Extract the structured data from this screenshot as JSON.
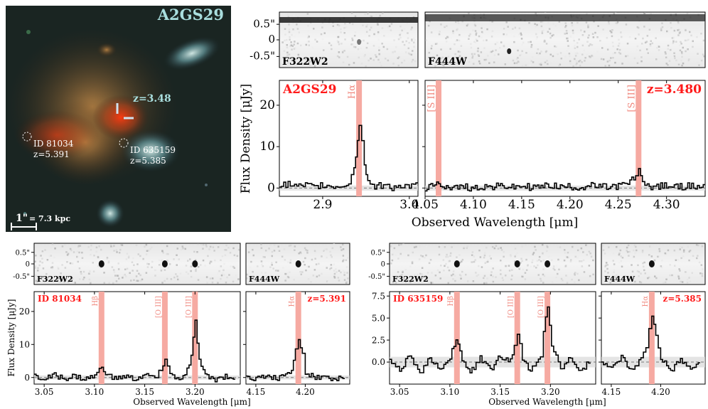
{
  "image": {
    "title": "A2GS29",
    "redshift": "z=3.48",
    "scale_bar": "1\"",
    "scale_text": "= 7.3 kpc",
    "sources": [
      {
        "id": "ID 81034",
        "z": "z=5.391"
      },
      {
        "id": "ID 635159",
        "z": "z=5.385"
      }
    ]
  },
  "colors": {
    "line_band": "#f6aaa2",
    "spectrum": "#000000",
    "label_red": "#ff1a1a",
    "label_line": "#f08a80",
    "noise_band": "#d8d8d8"
  },
  "chart_data": [
    {
      "name": "A2GS29",
      "type": "line",
      "ylabel": "Flux Density [μJy]",
      "xlabel": "Observed Wavelength [μm]",
      "spatial_ticks": [
        "0.5\"",
        "0",
        "-0.5\""
      ],
      "panels": [
        {
          "filter": "F322W2",
          "xlim": [
            2.85,
            3.01
          ],
          "xticks": [
            2.9,
            3.0
          ],
          "xtick_labels": [
            "2.9",
            "3.0"
          ],
          "lines": [
            {
              "label": "Hα",
              "x": 2.942
            }
          ],
          "x": [
            2.85,
            2.86,
            2.87,
            2.88,
            2.89,
            2.9,
            2.91,
            2.92,
            2.93,
            2.936,
            2.94,
            2.942,
            2.945,
            2.948,
            2.952,
            2.96,
            2.97,
            2.98,
            2.99,
            3.0,
            3.01
          ],
          "y": [
            0.4,
            1.0,
            0.2,
            0.6,
            0.1,
            0.8,
            0.3,
            0.5,
            1.2,
            5.0,
            11.0,
            15.5,
            12.0,
            6.0,
            1.5,
            0.3,
            0.8,
            0.2,
            0.6,
            0.3,
            0.5
          ]
        },
        {
          "filter": "F444W",
          "xlim": [
            4.05,
            4.34
          ],
          "xticks": [
            4.05,
            4.1,
            4.15,
            4.2,
            4.25,
            4.3
          ],
          "xtick_labels": [
            "4.05",
            "4.10",
            "4.15",
            "4.20",
            "4.25",
            "4.30"
          ],
          "lines": [
            {
              "label": "[S III]",
              "x": 4.064
            },
            {
              "label": "[S III]",
              "x": 4.271
            }
          ],
          "x": [
            4.05,
            4.06,
            4.064,
            4.07,
            4.08,
            4.09,
            4.1,
            4.11,
            4.12,
            4.13,
            4.14,
            4.15,
            4.16,
            4.17,
            4.18,
            4.19,
            4.2,
            4.21,
            4.22,
            4.23,
            4.24,
            4.25,
            4.26,
            4.268,
            4.271,
            4.275,
            4.28,
            4.29,
            4.3,
            4.31,
            4.32,
            4.33,
            4.34
          ],
          "y": [
            0.0,
            0.4,
            1.2,
            0.5,
            0.1,
            0.3,
            0.0,
            0.4,
            0.2,
            0.6,
            0.1,
            0.5,
            0.2,
            0.3,
            0.7,
            0.2,
            0.4,
            0.1,
            0.6,
            0.3,
            0.2,
            0.5,
            1.0,
            3.0,
            4.0,
            2.0,
            0.5,
            0.3,
            0.6,
            0.2,
            0.5,
            0.3,
            0.4
          ]
        }
      ],
      "ylim": [
        -2,
        26
      ],
      "yticks": [
        0,
        10,
        20
      ],
      "redshift_label": "z=3.480"
    },
    {
      "name": "ID 81034",
      "type": "line",
      "ylabel": "Flux Density [μJy]",
      "xlabel": "Observed Wavelength [μm]",
      "spatial_ticks": [
        "0.5\"",
        "0",
        "-0.5\""
      ],
      "panels": [
        {
          "filter": "F322W2",
          "xlim": [
            3.04,
            3.245
          ],
          "xticks": [
            3.05,
            3.1,
            3.15,
            3.2
          ],
          "xtick_labels": [
            "3.05",
            "3.10",
            "3.15",
            "3.20"
          ],
          "lines": [
            {
              "label": "Hβ",
              "x": 3.107
            },
            {
              "label": "[O III]",
              "x": 3.17
            },
            {
              "label": "[O III]",
              "x": 3.2
            }
          ],
          "x": [
            3.04,
            3.05,
            3.06,
            3.07,
            3.08,
            3.09,
            3.1,
            3.107,
            3.115,
            3.12,
            3.13,
            3.14,
            3.15,
            3.16,
            3.166,
            3.17,
            3.175,
            3.18,
            3.19,
            3.196,
            3.2,
            3.204,
            3.21,
            3.22,
            3.23,
            3.24
          ],
          "y": [
            0.2,
            -0.5,
            0.6,
            -0.3,
            0.4,
            -0.6,
            0.5,
            3.0,
            0.2,
            -0.4,
            0.3,
            -0.5,
            0.6,
            0.1,
            2.0,
            6.0,
            1.0,
            -0.5,
            0.4,
            6.0,
            17.0,
            5.0,
            0.3,
            -0.6,
            0.4,
            -0.2
          ]
        },
        {
          "filter": "F444W",
          "xlim": [
            4.14,
            4.245
          ],
          "xticks": [
            4.15,
            4.2
          ],
          "xtick_labels": [
            "4.15",
            "4.20"
          ],
          "lines": [
            {
              "label": "Hα",
              "x": 4.193
            }
          ],
          "x": [
            4.14,
            4.15,
            4.16,
            4.17,
            4.18,
            4.186,
            4.19,
            4.193,
            4.197,
            4.2,
            4.21,
            4.22,
            4.23,
            4.24
          ],
          "y": [
            0.2,
            -0.4,
            0.5,
            -0.3,
            0.3,
            2.0,
            8.5,
            12.0,
            7.0,
            1.5,
            -0.3,
            0.4,
            -0.5,
            0.2
          ]
        }
      ],
      "ylim": [
        -2,
        26
      ],
      "yticks": [
        0,
        10,
        20
      ],
      "redshift_label": "z=5.391"
    },
    {
      "name": "ID 635159",
      "type": "line",
      "ylabel": "",
      "xlabel": "Observed Wavelength [μm]",
      "spatial_ticks": [
        "0.5\"",
        "0",
        "-0.5\""
      ],
      "panels": [
        {
          "filter": "F322W2",
          "xlim": [
            3.04,
            3.245
          ],
          "xticks": [
            3.05,
            3.1,
            3.15,
            3.2
          ],
          "xtick_labels": [
            "3.05",
            "3.10",
            "3.15",
            "3.20"
          ],
          "lines": [
            {
              "label": "Hβ",
              "x": 3.107
            },
            {
              "label": "[O III]",
              "x": 3.167
            },
            {
              "label": "[O III]",
              "x": 3.197
            }
          ],
          "x": [
            3.04,
            3.05,
            3.06,
            3.07,
            3.08,
            3.09,
            3.1,
            3.106,
            3.112,
            3.12,
            3.13,
            3.14,
            3.15,
            3.16,
            3.164,
            3.167,
            3.172,
            3.18,
            3.19,
            3.193,
            3.197,
            3.201,
            3.21,
            3.22,
            3.23,
            3.24
          ],
          "y": [
            0.3,
            -1.0,
            0.8,
            -1.5,
            0.5,
            -0.8,
            0.6,
            2.5,
            0.3,
            -1.2,
            0.4,
            -0.9,
            0.7,
            0.2,
            2.0,
            3.2,
            0.4,
            -1.0,
            0.5,
            3.5,
            6.5,
            2.0,
            -0.8,
            0.6,
            -1.1,
            0.3
          ]
        },
        {
          "filter": "F444W",
          "xlim": [
            4.14,
            4.245
          ],
          "xticks": [
            4.15,
            4.2
          ],
          "xtick_labels": [
            "4.15",
            "4.20"
          ],
          "lines": [
            {
              "label": "Hα",
              "x": 4.191
            }
          ],
          "x": [
            4.14,
            4.15,
            4.16,
            4.17,
            4.18,
            4.185,
            4.188,
            4.191,
            4.195,
            4.2,
            4.21,
            4.22,
            4.23,
            4.24
          ],
          "y": [
            0.2,
            -0.8,
            0.6,
            -1.0,
            0.4,
            1.5,
            4.0,
            5.3,
            3.0,
            0.5,
            -1.0,
            0.3,
            -0.9,
            0.2
          ]
        }
      ],
      "ylim": [
        -2.5,
        8
      ],
      "yticks": [
        0.0,
        2.5,
        5.0,
        7.5
      ],
      "ytick_labels": [
        "0.0",
        "2.5",
        "5.0",
        "7.5"
      ],
      "redshift_label": "z=5.385"
    }
  ]
}
